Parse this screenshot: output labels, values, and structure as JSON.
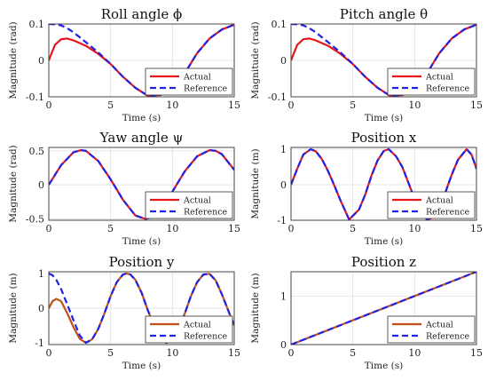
{
  "colors": {
    "actual": "#e8151b",
    "actual_position": "#c0501a",
    "reference": "#1f22e6"
  },
  "chart_data": [
    {
      "type": "line",
      "title": "Roll angle ϕ",
      "xlabel": "Time (s)",
      "ylabel": "Magnitude (rad)",
      "xlim": [
        0,
        15
      ],
      "ylim": [
        -0.1,
        0.1
      ],
      "xticks": [
        "0",
        "5",
        "10",
        "15"
      ],
      "yticks": [
        "-0.1",
        "0",
        "0.1"
      ],
      "grid": true,
      "legend_position": "bottom-right",
      "series": [
        {
          "name": "Actual",
          "style": "solid",
          "x": [
            0,
            0.5,
            1,
            1.5,
            2,
            3,
            4,
            5,
            6,
            7,
            8,
            9,
            10,
            11,
            12,
            13,
            14,
            15
          ],
          "y": [
            0,
            0.043,
            0.058,
            0.06,
            0.055,
            0.04,
            0.018,
            -0.01,
            -0.045,
            -0.075,
            -0.097,
            -0.095,
            -0.08,
            -0.035,
            0.02,
            0.06,
            0.085,
            0.098
          ]
        },
        {
          "name": "Reference",
          "style": "dashed",
          "x": [
            0,
            0.5,
            1,
            1.5,
            2,
            3,
            4,
            5,
            6,
            7,
            8,
            9,
            10,
            11,
            12,
            13,
            14,
            15
          ],
          "y": [
            0.1,
            0.099,
            0.096,
            0.088,
            0.077,
            0.05,
            0.022,
            -0.01,
            -0.045,
            -0.075,
            -0.097,
            -0.095,
            -0.08,
            -0.035,
            0.02,
            0.06,
            0.085,
            0.098
          ]
        }
      ]
    },
    {
      "type": "line",
      "title": "Pitch angle θ",
      "xlabel": "Time (s)",
      "ylabel": "Magnitude (rad)",
      "xlim": [
        0,
        15
      ],
      "ylim": [
        -0.1,
        0.1
      ],
      "xticks": [
        "0",
        "5",
        "10",
        "15"
      ],
      "yticks": [
        "-0.1",
        "0",
        "0.1"
      ],
      "grid": true,
      "legend_position": "bottom-right",
      "series": [
        {
          "name": "Actual",
          "style": "solid",
          "x": [
            0,
            0.5,
            1,
            1.5,
            2,
            3,
            4,
            5,
            6,
            7,
            8,
            9,
            10,
            11,
            12,
            13,
            14,
            15
          ],
          "y": [
            0,
            0.043,
            0.058,
            0.06,
            0.055,
            0.04,
            0.018,
            -0.01,
            -0.045,
            -0.075,
            -0.097,
            -0.095,
            -0.08,
            -0.035,
            0.02,
            0.06,
            0.085,
            0.098
          ]
        },
        {
          "name": "Reference",
          "style": "dashed",
          "x": [
            0,
            0.5,
            1,
            1.5,
            2,
            3,
            4,
            5,
            6,
            7,
            8,
            9,
            10,
            11,
            12,
            13,
            14,
            15
          ],
          "y": [
            0.1,
            0.099,
            0.096,
            0.088,
            0.077,
            0.05,
            0.022,
            -0.01,
            -0.045,
            -0.075,
            -0.097,
            -0.095,
            -0.08,
            -0.035,
            0.02,
            0.06,
            0.085,
            0.098
          ]
        }
      ]
    },
    {
      "type": "line",
      "title": "Yaw angle ψ",
      "xlabel": "Time (s)",
      "ylabel": "Magnitude (rad)",
      "xlim": [
        0,
        15
      ],
      "ylim": [
        -0.52,
        0.55
      ],
      "xticks": [
        "0",
        "5",
        "10",
        "15"
      ],
      "yticks": [
        "-0.5",
        "0",
        "0.5"
      ],
      "grid": true,
      "legend_position": "bottom-right",
      "series": [
        {
          "name": "Actual",
          "style": "solid",
          "x": [
            0,
            1,
            2,
            2.6,
            3,
            4,
            5,
            6,
            7,
            7.8,
            8.5,
            9,
            10,
            11,
            12,
            13,
            13.5,
            14,
            15
          ],
          "y": [
            0,
            0.29,
            0.48,
            0.51,
            0.5,
            0.35,
            0.08,
            -0.22,
            -0.45,
            -0.5,
            -0.47,
            -0.38,
            -0.1,
            0.2,
            0.42,
            0.51,
            0.5,
            0.45,
            0.22
          ]
        },
        {
          "name": "Reference",
          "style": "dashed",
          "x": [
            0,
            1,
            2,
            2.6,
            3,
            4,
            5,
            6,
            7,
            7.8,
            8.5,
            9,
            10,
            11,
            12,
            13,
            13.5,
            14,
            15
          ],
          "y": [
            0,
            0.29,
            0.48,
            0.51,
            0.5,
            0.35,
            0.08,
            -0.22,
            -0.45,
            -0.5,
            -0.47,
            -0.38,
            -0.1,
            0.2,
            0.42,
            0.51,
            0.5,
            0.45,
            0.22
          ]
        }
      ]
    },
    {
      "type": "line",
      "title": "Position x",
      "xlabel": "Time (s)",
      "ylabel": "Magnitude (m)",
      "xlim": [
        0,
        15
      ],
      "ylim": [
        -1,
        1.05
      ],
      "xticks": [
        "0",
        "5",
        "10",
        "15"
      ],
      "yticks": [
        "-1",
        "0",
        "1"
      ],
      "grid": true,
      "legend_position": "bottom-right",
      "series": [
        {
          "name": "Actual",
          "style": "solid",
          "x": [
            0,
            0.5,
            1,
            1.6,
            2,
            2.5,
            3,
            3.5,
            4,
            4.7,
            5.5,
            6,
            6.5,
            7,
            7.5,
            7.9,
            8.5,
            9,
            9.5,
            10,
            10.5,
            11,
            11.5,
            12,
            12.5,
            13,
            13.5,
            14.2,
            14.6,
            15
          ],
          "y": [
            0,
            0.45,
            0.85,
            1,
            0.94,
            0.72,
            0.38,
            -0.02,
            -0.44,
            -0.98,
            -0.7,
            -0.28,
            0.25,
            0.68,
            0.95,
            1,
            0.8,
            0.5,
            0.05,
            -0.4,
            -0.78,
            -0.98,
            -0.92,
            -0.62,
            -0.2,
            0.28,
            0.7,
            1,
            0.85,
            0.45
          ]
        },
        {
          "name": "Reference",
          "style": "dashed",
          "x": [
            0,
            0.5,
            1,
            1.6,
            2,
            2.5,
            3,
            3.5,
            4,
            4.7,
            5.5,
            6,
            6.5,
            7,
            7.5,
            7.9,
            8.5,
            9,
            9.5,
            10,
            10.5,
            11,
            11.5,
            12,
            12.5,
            13,
            13.5,
            14.2,
            14.6,
            15
          ],
          "y": [
            0,
            0.45,
            0.85,
            1,
            0.94,
            0.72,
            0.38,
            -0.02,
            -0.44,
            -0.98,
            -0.7,
            -0.28,
            0.25,
            0.68,
            0.95,
            1,
            0.8,
            0.5,
            0.05,
            -0.4,
            -0.78,
            -0.98,
            -0.92,
            -0.62,
            -0.2,
            0.28,
            0.7,
            1,
            0.85,
            0.45
          ]
        }
      ]
    },
    {
      "type": "line",
      "title": "Position y",
      "xlabel": "Time (s)",
      "ylabel": "Magnitude (m)",
      "xlim": [
        0,
        15
      ],
      "ylim": [
        -1.05,
        1.05
      ],
      "xticks": [
        "0",
        "5",
        "10",
        "15"
      ],
      "yticks": [
        "-1",
        "0",
        "1"
      ],
      "grid": true,
      "legend_position": "bottom-right",
      "series": [
        {
          "name": "Actual",
          "style": "solid",
          "x": [
            0,
            0.3,
            0.6,
            1,
            1.5,
            2,
            2.5,
            3,
            3.5,
            4,
            4.5,
            5,
            5.5,
            6,
            6.3,
            6.6,
            7,
            7.5,
            8,
            8.5,
            9,
            9.5,
            10,
            10.5,
            11,
            11.5,
            12,
            12.5,
            13,
            13.5,
            14,
            14.5,
            15
          ],
          "y": [
            0,
            0.2,
            0.27,
            0.2,
            -0.15,
            -0.55,
            -0.88,
            -1,
            -0.9,
            -0.6,
            -0.15,
            0.35,
            0.75,
            0.97,
            1,
            0.97,
            0.82,
            0.45,
            -0.05,
            -0.5,
            -0.85,
            -1,
            -0.92,
            -0.6,
            -0.15,
            0.35,
            0.75,
            0.97,
            0.99,
            0.8,
            0.4,
            -0.05,
            -0.5
          ]
        },
        {
          "name": "Reference",
          "style": "dashed",
          "x": [
            0,
            0.3,
            0.6,
            1,
            1.5,
            2,
            2.5,
            3,
            3.5,
            4,
            4.5,
            5,
            5.5,
            6,
            6.3,
            6.6,
            7,
            7.5,
            8,
            8.5,
            9,
            9.5,
            10,
            10.5,
            11,
            11.5,
            12,
            12.5,
            13,
            13.5,
            14,
            14.5,
            15
          ],
          "y": [
            1,
            0.95,
            0.82,
            0.55,
            0.1,
            -0.35,
            -0.78,
            -1,
            -0.9,
            -0.6,
            -0.15,
            0.35,
            0.75,
            0.97,
            1,
            0.97,
            0.82,
            0.45,
            -0.05,
            -0.5,
            -0.85,
            -1,
            -0.92,
            -0.6,
            -0.15,
            0.35,
            0.75,
            0.97,
            0.99,
            0.8,
            0.4,
            -0.05,
            -0.5
          ]
        }
      ]
    },
    {
      "type": "line",
      "title": "Position z",
      "xlabel": "Time (s)",
      "ylabel": "Magnitude (m)",
      "xlim": [
        0,
        15
      ],
      "ylim": [
        0,
        1.5
      ],
      "xticks": [
        "0",
        "5",
        "10",
        "15"
      ],
      "yticks": [
        "0",
        "1"
      ],
      "grid": true,
      "legend_position": "bottom-right",
      "series": [
        {
          "name": "Actual",
          "style": "solid",
          "x": [
            0,
            15
          ],
          "y": [
            0,
            1.5
          ]
        },
        {
          "name": "Reference",
          "style": "dashed",
          "x": [
            0,
            15
          ],
          "y": [
            0,
            1.5
          ]
        }
      ]
    }
  ]
}
